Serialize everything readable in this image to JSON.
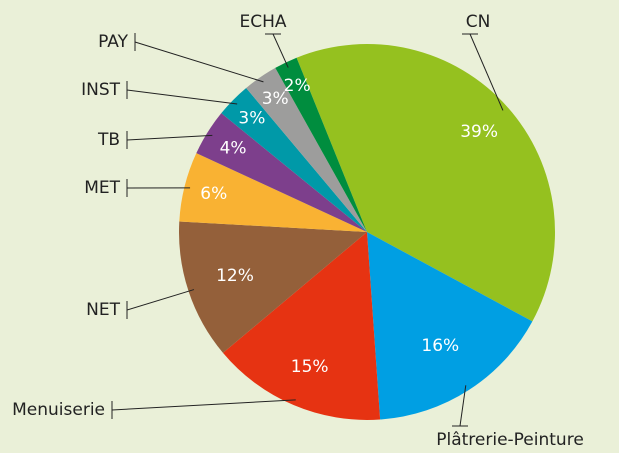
{
  "chart_data": {
    "type": "pie",
    "categories": [
      "CN",
      "Plâtrerie-Peinture",
      "Menuiserie",
      "NET",
      "MET",
      "TB",
      "INST",
      "PAY",
      "ECHA"
    ],
    "values": [
      39,
      16,
      15,
      12,
      6,
      4,
      3,
      3,
      2
    ],
    "value_labels": [
      "39%",
      "16%",
      "15%",
      "12%",
      "6%",
      "4%",
      "3%",
      "3%",
      "2%"
    ],
    "colors": [
      "#95c11f",
      "#009fe3",
      "#e63312",
      "#94603a",
      "#f9b233",
      "#7d3f8c",
      "#0099a8",
      "#9d9d9c",
      "#008d3e"
    ]
  }
}
